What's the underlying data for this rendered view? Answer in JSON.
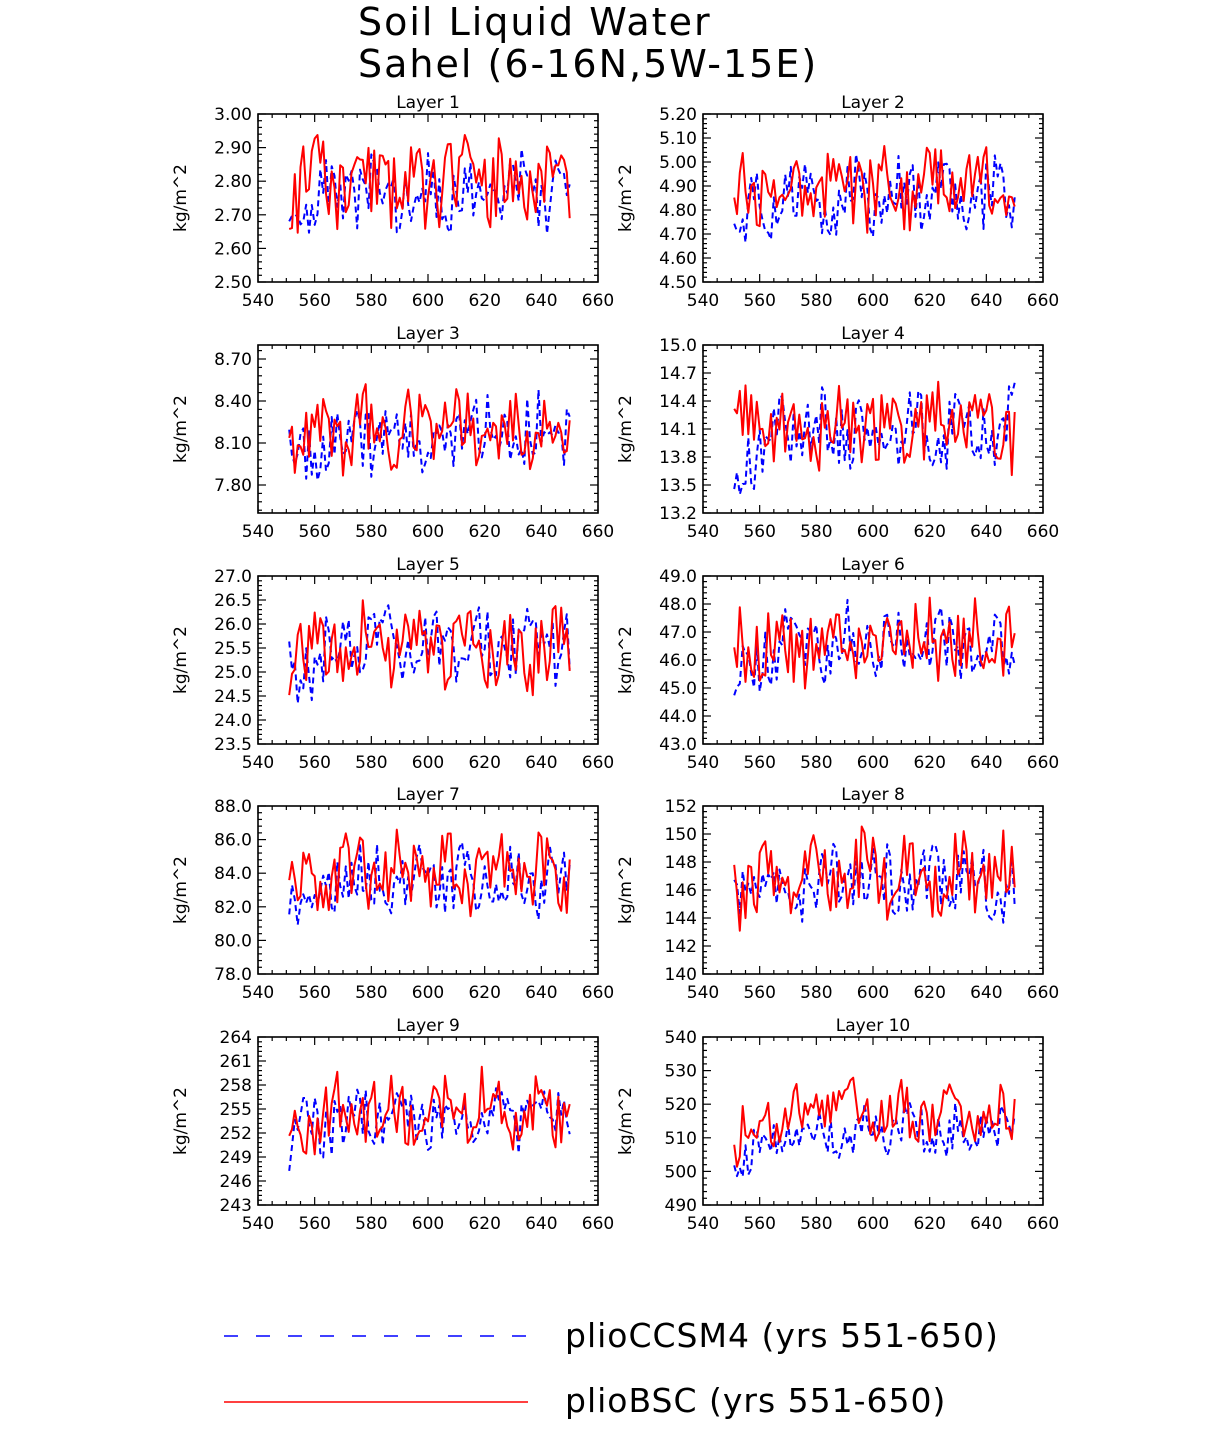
{
  "figure": {
    "title_line1": "Soil Liquid Water",
    "title_line2": "Sahel (6-16N,5W-15E)"
  },
  "colors": {
    "series_a": "#0000ff",
    "series_b": "#ff0000",
    "axis": "#000000"
  },
  "legend": {
    "items": [
      {
        "label": "plioCCSM4 (yrs 551-650)",
        "style": "dashed",
        "color": "#0000ff"
      },
      {
        "label": "plioBSC (yrs 551-650)",
        "style": "solid",
        "color": "#ff0000"
      }
    ]
  },
  "chart_data": [
    {
      "type": "line",
      "title": "Layer 1",
      "ylabel": "kg/m^2",
      "xlim": [
        540,
        660
      ],
      "x_ticks": [
        540,
        560,
        580,
        600,
        620,
        640,
        660
      ],
      "ylim": [
        2.5,
        3.0
      ],
      "y_ticks": [
        2.5,
        2.6,
        2.7,
        2.8,
        2.9,
        3.0
      ],
      "y_decimals": 2,
      "x_range": [
        551,
        650
      ],
      "series": [
        {
          "name": "plioCCSM4 (yrs 551-650)",
          "base": 2.655,
          "swing": 0.1,
          "rise": 0.11,
          "seed": 3,
          "values": []
        },
        {
          "name": "plioBSC (yrs 551-650)",
          "base": 2.775,
          "swing": 0.12,
          "rise": 0.02,
          "seed": 11,
          "values": []
        }
      ]
    },
    {
      "type": "line",
      "title": "Layer 2",
      "ylabel": "kg/m^2",
      "xlim": [
        540,
        660
      ],
      "x_ticks": [
        540,
        560,
        580,
        600,
        620,
        640,
        660
      ],
      "ylim": [
        4.5,
        5.2
      ],
      "y_ticks": [
        4.5,
        4.6,
        4.7,
        4.8,
        4.9,
        5.0,
        5.1,
        5.2
      ],
      "y_decimals": 2,
      "x_range": [
        551,
        650
      ],
      "series": [
        {
          "name": "plioCCSM4 (yrs 551-650)",
          "base": 4.72,
          "swing": 0.14,
          "rise": 0.13,
          "seed": 5,
          "values": []
        },
        {
          "name": "plioBSC (yrs 551-650)",
          "base": 4.88,
          "swing": 0.15,
          "rise": 0.02,
          "seed": 13,
          "values": []
        }
      ]
    },
    {
      "type": "line",
      "title": "Layer 3",
      "ylabel": "kg/m^2",
      "xlim": [
        540,
        660
      ],
      "x_ticks": [
        540,
        560,
        580,
        600,
        620,
        640,
        660
      ],
      "ylim": [
        7.6,
        8.8
      ],
      "y_ticks": [
        7.8,
        8.1,
        8.4,
        8.7
      ],
      "y_decimals": 2,
      "x_range": [
        551,
        650
      ],
      "series": [
        {
          "name": "plioCCSM4 (yrs 551-650)",
          "base": 7.95,
          "swing": 0.24,
          "rise": 0.22,
          "seed": 7,
          "values": []
        },
        {
          "name": "plioBSC (yrs 551-650)",
          "base": 8.16,
          "swing": 0.26,
          "rise": 0.04,
          "seed": 17,
          "values": []
        }
      ]
    },
    {
      "type": "line",
      "title": "Layer 4",
      "ylabel": "kg/m^2",
      "xlim": [
        540,
        660
      ],
      "x_ticks": [
        540,
        560,
        580,
        600,
        620,
        640,
        660
      ],
      "ylim": [
        13.2,
        15.0
      ],
      "y_ticks": [
        13.2,
        13.5,
        13.8,
        14.1,
        14.4,
        14.7,
        15.0
      ],
      "y_decimals": 1,
      "x_range": [
        551,
        650
      ],
      "series": [
        {
          "name": "plioCCSM4 (yrs 551-650)",
          "base": 13.75,
          "swing": 0.38,
          "rise": 0.35,
          "seed": 9,
          "values": []
        },
        {
          "name": "plioBSC (yrs 551-650)",
          "base": 14.08,
          "swing": 0.4,
          "rise": 0.05,
          "seed": 19,
          "values": []
        }
      ]
    },
    {
      "type": "line",
      "title": "Layer 5",
      "ylabel": "kg/m^2",
      "xlim": [
        540,
        660
      ],
      "x_ticks": [
        540,
        560,
        580,
        600,
        620,
        640,
        660
      ],
      "ylim": [
        23.5,
        27.0
      ],
      "y_ticks": [
        23.5,
        24.0,
        24.5,
        25.0,
        25.5,
        26.0,
        26.5,
        27.0
      ],
      "y_decimals": 1,
      "x_range": [
        551,
        650
      ],
      "series": [
        {
          "name": "plioCCSM4 (yrs 551-650)",
          "base": 24.85,
          "swing": 0.7,
          "rise": 0.7,
          "seed": 21,
          "values": []
        },
        {
          "name": "plioBSC (yrs 551-650)",
          "base": 25.4,
          "swing": 0.75,
          "rise": 0.1,
          "seed": 23,
          "values": []
        }
      ]
    },
    {
      "type": "line",
      "title": "Layer 6",
      "ylabel": "kg/m^2",
      "xlim": [
        540,
        660
      ],
      "x_ticks": [
        540,
        560,
        580,
        600,
        620,
        640,
        660
      ],
      "ylim": [
        43.0,
        49.0
      ],
      "y_ticks": [
        43.0,
        44.0,
        45.0,
        46.0,
        47.0,
        48.0,
        49.0
      ],
      "y_decimals": 1,
      "x_range": [
        551,
        650
      ],
      "series": [
        {
          "name": "plioCCSM4 (yrs 551-650)",
          "base": 45.5,
          "swing": 1.2,
          "rise": 1.1,
          "seed": 25,
          "values": []
        },
        {
          "name": "plioBSC (yrs 551-650)",
          "base": 46.4,
          "swing": 1.3,
          "rise": 0.2,
          "seed": 27,
          "values": []
        }
      ]
    },
    {
      "type": "line",
      "title": "Layer 7",
      "ylabel": "kg/m^2",
      "xlim": [
        540,
        660
      ],
      "x_ticks": [
        540,
        560,
        580,
        600,
        620,
        640,
        660
      ],
      "ylim": [
        78.0,
        88.0
      ],
      "y_ticks": [
        78.0,
        80.0,
        82.0,
        84.0,
        86.0,
        88.0
      ],
      "y_decimals": 1,
      "x_range": [
        551,
        650
      ],
      "series": [
        {
          "name": "plioCCSM4 (yrs 551-650)",
          "base": 82.0,
          "swing": 1.9,
          "rise": 1.6,
          "seed": 29,
          "values": []
        },
        {
          "name": "plioBSC (yrs 551-650)",
          "base": 83.3,
          "swing": 2.0,
          "rise": 0.8,
          "seed": 31,
          "values": []
        }
      ]
    },
    {
      "type": "line",
      "title": "Layer 8",
      "ylabel": "kg/m^2",
      "xlim": [
        540,
        660
      ],
      "x_ticks": [
        540,
        560,
        580,
        600,
        620,
        640,
        660
      ],
      "ylim": [
        140,
        152
      ],
      "y_ticks": [
        140,
        142,
        144,
        146,
        148,
        150,
        152
      ],
      "y_decimals": 0,
      "x_range": [
        551,
        650
      ],
      "series": [
        {
          "name": "plioCCSM4 (yrs 551-650)",
          "base": 144.5,
          "swing": 2.4,
          "rise": 2.2,
          "seed": 33,
          "values": []
        },
        {
          "name": "plioBSC (yrs 551-650)",
          "base": 146.0,
          "swing": 2.5,
          "rise": 1.2,
          "seed": 35,
          "values": []
        }
      ]
    },
    {
      "type": "line",
      "title": "Layer 9",
      "ylabel": "kg/m^2",
      "xlim": [
        540,
        660
      ],
      "x_ticks": [
        540,
        560,
        580,
        600,
        620,
        640,
        660
      ],
      "ylim": [
        243,
        264
      ],
      "y_ticks": [
        243,
        246,
        249,
        252,
        255,
        258,
        261,
        264
      ],
      "y_decimals": 0,
      "x_range": [
        551,
        650
      ],
      "series": [
        {
          "name": "plioCCSM4 (yrs 551-650)",
          "base": 251.0,
          "swing": 3.5,
          "rise": 3.0,
          "seed": 37,
          "values": []
        },
        {
          "name": "plioBSC (yrs 551-650)",
          "base": 252.5,
          "swing": 4.0,
          "rise": 2.5,
          "seed": 39,
          "values": []
        }
      ]
    },
    {
      "type": "line",
      "title": "Layer 10",
      "ylabel": "kg/m^2",
      "xlim": [
        540,
        660
      ],
      "x_ticks": [
        540,
        560,
        580,
        600,
        620,
        640,
        660
      ],
      "ylim": [
        490,
        540
      ],
      "y_ticks": [
        490,
        500,
        510,
        520,
        530,
        540
      ],
      "y_decimals": 0,
      "x_range": [
        551,
        650
      ],
      "series": [
        {
          "name": "plioCCSM4 (yrs 551-650)",
          "base": 504.0,
          "swing": 7.0,
          "rise": 8.0,
          "seed": 41,
          "values": []
        },
        {
          "name": "plioBSC (yrs 551-650)",
          "base": 510.0,
          "swing": 8.0,
          "rise": 8.0,
          "seed": 43,
          "values": []
        }
      ]
    }
  ]
}
